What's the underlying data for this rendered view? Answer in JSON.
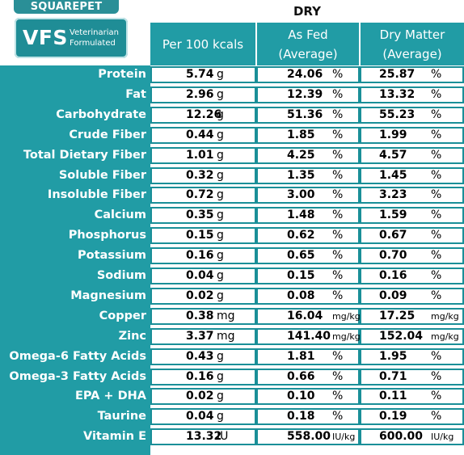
{
  "brand": {
    "name": "SQUAREPET",
    "badge": "VFS",
    "badge_line1": "Veterinarian",
    "badge_line2": "Formulated"
  },
  "table_title": "DRY",
  "headers": {
    "col1": "Per 100 kcals",
    "col2_line1": "As Fed",
    "col2_line2": "(Average)",
    "col3_line1": "Dry Matter",
    "col3_line2": "(Average)"
  },
  "colors": {
    "teal": "#219ca5",
    "border": "#1a8f98"
  },
  "rows": [
    {
      "label": "Protein",
      "kcal": "5.74",
      "kcal_unit": "g",
      "fed": "24.06",
      "fed_unit": "%",
      "dm": "25.87",
      "dm_unit": "%"
    },
    {
      "label": "Fat",
      "kcal": "2.96",
      "kcal_unit": "g",
      "fed": "12.39",
      "fed_unit": "%",
      "dm": "13.32",
      "dm_unit": "%"
    },
    {
      "label": "Carbohydrate",
      "kcal": "12.26",
      "kcal_unit": "g",
      "fed": "51.36",
      "fed_unit": "%",
      "dm": "55.23",
      "dm_unit": "%"
    },
    {
      "label": "Crude Fiber",
      "kcal": "0.44",
      "kcal_unit": "g",
      "fed": "1.85",
      "fed_unit": "%",
      "dm": "1.99",
      "dm_unit": "%"
    },
    {
      "label": "Total Dietary Fiber",
      "kcal": "1.01",
      "kcal_unit": "g",
      "fed": "4.25",
      "fed_unit": "%",
      "dm": "4.57",
      "dm_unit": "%"
    },
    {
      "label": "Soluble Fiber",
      "kcal": "0.32",
      "kcal_unit": "g",
      "fed": "1.35",
      "fed_unit": "%",
      "dm": "1.45",
      "dm_unit": "%"
    },
    {
      "label": "Insoluble Fiber",
      "kcal": "0.72",
      "kcal_unit": "g",
      "fed": "3.00",
      "fed_unit": "%",
      "dm": "3.23",
      "dm_unit": "%"
    },
    {
      "label": "Calcium",
      "kcal": "0.35",
      "kcal_unit": "g",
      "fed": "1.48",
      "fed_unit": "%",
      "dm": "1.59",
      "dm_unit": "%"
    },
    {
      "label": "Phosphorus",
      "kcal": "0.15",
      "kcal_unit": "g",
      "fed": "0.62",
      "fed_unit": "%",
      "dm": "0.67",
      "dm_unit": "%"
    },
    {
      "label": "Potassium",
      "kcal": "0.16",
      "kcal_unit": "g",
      "fed": "0.65",
      "fed_unit": "%",
      "dm": "0.70",
      "dm_unit": "%"
    },
    {
      "label": "Sodium",
      "kcal": "0.04",
      "kcal_unit": "g",
      "fed": "0.15",
      "fed_unit": "%",
      "dm": "0.16",
      "dm_unit": "%"
    },
    {
      "label": "Magnesium",
      "kcal": "0.02",
      "kcal_unit": "g",
      "fed": "0.08",
      "fed_unit": "%",
      "dm": "0.09",
      "dm_unit": "%"
    },
    {
      "label": "Copper",
      "kcal": "0.38",
      "kcal_unit": "mg",
      "fed": "16.04",
      "fed_unit": "mg/kg",
      "dm": "17.25",
      "dm_unit": "mg/kg"
    },
    {
      "label": "Zinc",
      "kcal": "3.37",
      "kcal_unit": "mg",
      "fed": "141.40",
      "fed_unit": "mg/kg",
      "dm": "152.04",
      "dm_unit": "mg/kg"
    },
    {
      "label": "Omega-6 Fatty Acids",
      "kcal": "0.43",
      "kcal_unit": "g",
      "fed": "1.81",
      "fed_unit": "%",
      "dm": "1.95",
      "dm_unit": "%"
    },
    {
      "label": "Omega-3 Fatty Acids",
      "kcal": "0.16",
      "kcal_unit": "g",
      "fed": "0.66",
      "fed_unit": "%",
      "dm": "0.71",
      "dm_unit": "%"
    },
    {
      "label": "EPA + DHA",
      "kcal": "0.02",
      "kcal_unit": "g",
      "fed": "0.10",
      "fed_unit": "%",
      "dm": "0.11",
      "dm_unit": "%"
    },
    {
      "label": "Taurine",
      "kcal": "0.04",
      "kcal_unit": "g",
      "fed": "0.18",
      "fed_unit": "%",
      "dm": "0.19",
      "dm_unit": "%"
    },
    {
      "label": "Vitamin E",
      "kcal": "13.32",
      "kcal_unit": "IU",
      "fed": "558.00",
      "fed_unit": "IU/kg",
      "dm": "600.00",
      "dm_unit": "IU/kg"
    }
  ]
}
